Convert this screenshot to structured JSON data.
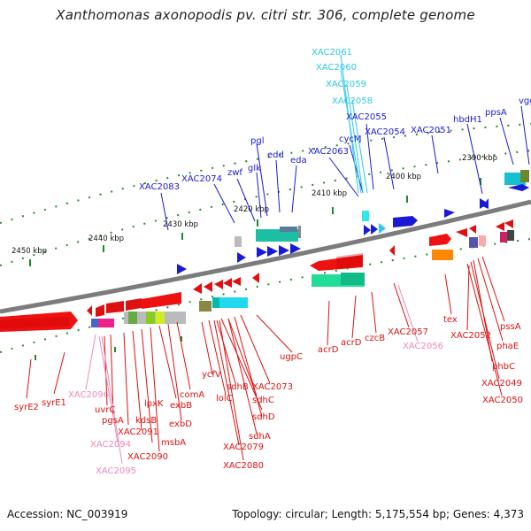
{
  "title": "Xanthomonas axonopodis pv. citri str. 306, complete genome",
  "footer": {
    "accession": "Accession: NC_003919",
    "topology": "Topology: circular; Length: 5,175,554 bp; Genes: 4,373"
  },
  "colors": {
    "forward_label": "#1a1ad6",
    "reverse_label": "#dd1111",
    "faint_label": "#ee88bb",
    "cyan_label": "#2ec8e8",
    "backbone": "#8a8a8a",
    "tick": "#1f8a2a"
  },
  "ticks": [
    "2390 kbp",
    "2400 kbp",
    "2410 kbp",
    "2420 kbp",
    "2430 kbp",
    "2440 kbp",
    "2450 kbp"
  ],
  "genes_top": [
    "vggB",
    "ppsA",
    "hbdH1",
    "XAC2051",
    "XAC2054",
    "XAC2055",
    "cycM",
    "XAC2063",
    "eda",
    "edd",
    "glk",
    "pgl",
    "zwf",
    "XAC2074",
    "XAC2083"
  ],
  "genes_top_cyan": [
    "XAC2061",
    "XAC2060",
    "XAC2059",
    "XAC2058"
  ],
  "genes_bottom": [
    "syrE2",
    "syrE1",
    "XAC2096",
    "uvrC",
    "pgsA",
    "kdsB",
    "XAC2091",
    "lpxK",
    "XAC2094",
    "XAC2090",
    "exbB",
    "msbA",
    "exbD",
    "comA",
    "XAC2095",
    "ycfV",
    "lolC",
    "sdhB",
    "sdhC",
    "sdhD",
    "XAC2073",
    "sdhA",
    "XAC2079",
    "XAC2080",
    "ugpC",
    "acrD",
    "acrD",
    "czcB",
    "XAC2057",
    "XAC2056",
    "tex",
    "XAC2052",
    "pssA",
    "phaE",
    "phbC",
    "XAC2049",
    "XAC2050"
  ]
}
